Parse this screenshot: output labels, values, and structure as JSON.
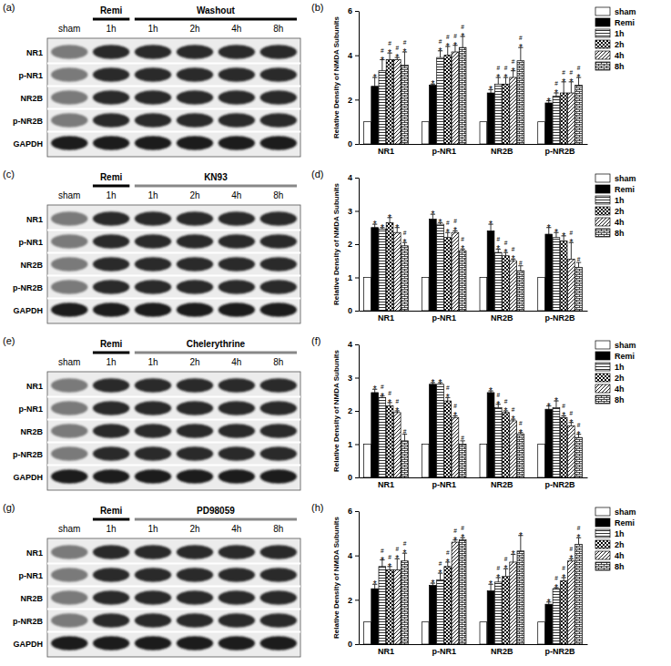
{
  "chart_data": [
    {
      "type": "bar",
      "panel": "(b)",
      "y_label": "Relative Density of NMDA Subunits",
      "categories": [
        "NR1",
        "p-NR1",
        "NR2B",
        "p-NR2B"
      ],
      "ylim": [
        0,
        6
      ],
      "yticks": [
        0,
        2,
        4,
        6
      ],
      "legend": "right",
      "series": [
        {
          "name": "sham",
          "color": "#ffffff",
          "values": [
            1,
            1,
            1,
            1
          ],
          "errors": [
            0,
            0,
            0,
            0
          ],
          "annotations": [
            [],
            [],
            [],
            []
          ]
        },
        {
          "name": "Remi",
          "color": "#000000",
          "values": [
            2.6,
            2.65,
            2.3,
            1.85
          ],
          "errors": [
            0.4,
            0.05,
            0.15,
            0.1
          ],
          "annotations": [
            [
              "*"
            ],
            [
              "*"
            ],
            [
              "*"
            ],
            [
              "*"
            ]
          ]
        },
        {
          "name": "1h",
          "color": "#ffffff",
          "values": [
            3.3,
            3.9,
            2.7,
            2.15
          ],
          "errors": [
            0.5,
            0.3,
            0.3,
            0.15
          ],
          "annotations": [
            [
              "*",
              "#"
            ],
            [
              "*",
              "#"
            ],
            [
              "*",
              "#"
            ],
            [
              "*",
              "#"
            ]
          ]
        },
        {
          "name": "2h",
          "color": "#ffffff",
          "values": [
            3.8,
            4.0,
            2.7,
            2.3
          ],
          "errors": [
            0.3,
            0.4,
            0.3,
            0.5
          ],
          "annotations": [
            [
              "*",
              "#"
            ],
            [
              "*",
              "#"
            ],
            [
              "*",
              "#"
            ],
            [
              "*",
              "#"
            ]
          ]
        },
        {
          "name": "4h",
          "color": "#ffffff",
          "values": [
            3.8,
            4.15,
            3.0,
            2.3
          ],
          "errors": [
            0.1,
            0.3,
            0.3,
            0.5
          ],
          "annotations": [
            [
              "*",
              "#"
            ],
            [
              "*",
              "#"
            ],
            [
              "*",
              "#"
            ],
            [
              "*",
              "#"
            ]
          ]
        },
        {
          "name": "8h",
          "color": "#ffffff",
          "values": [
            3.55,
            4.35,
            3.75,
            2.65
          ],
          "errors": [
            0.6,
            0.5,
            0.6,
            0.35
          ],
          "annotations": [
            [
              "*",
              "#"
            ],
            [
              "*",
              "#"
            ],
            [
              "*",
              "#"
            ],
            [
              "*",
              "#"
            ]
          ]
        }
      ]
    },
    {
      "type": "bar",
      "panel": "(d)",
      "y_label": "Relative Density of NMDA Subunits",
      "categories": [
        "NR1",
        "p-NR1",
        "NR2B",
        "p-NR2B"
      ],
      "ylim": [
        0,
        4
      ],
      "yticks": [
        0,
        1,
        2,
        3,
        4
      ],
      "legend": "right",
      "series": [
        {
          "name": "sham",
          "color": "#ffffff",
          "values": [
            1,
            1,
            1,
            1
          ],
          "errors": [
            0,
            0,
            0,
            0
          ],
          "annotations": [
            [],
            [],
            [],
            []
          ]
        },
        {
          "name": "Remi",
          "color": "#000000",
          "values": [
            2.5,
            2.75,
            2.4,
            2.3
          ],
          "errors": [
            0.1,
            0.15,
            0.2,
            0.2
          ],
          "annotations": [
            [
              "*"
            ],
            [
              "*"
            ],
            [
              "*"
            ],
            [
              "*"
            ]
          ]
        },
        {
          "name": "1h",
          "color": "#ffffff",
          "values": [
            2.45,
            2.6,
            1.75,
            2.2
          ],
          "errors": [
            0.05,
            0.05,
            0.1,
            0.15
          ],
          "annotations": [
            [
              "*"
            ],
            [
              "*"
            ],
            [
              "*",
              "#"
            ],
            [
              "*"
            ]
          ]
        },
        {
          "name": "2h",
          "color": "#ffffff",
          "values": [
            2.65,
            2.2,
            1.65,
            2.1
          ],
          "errors": [
            0.15,
            0.15,
            0.1,
            0.15
          ],
          "annotations": [
            [
              "*"
            ],
            [
              "*",
              "#"
            ],
            [
              "*",
              "#"
            ],
            [
              "*"
            ]
          ]
        },
        {
          "name": "4h",
          "color": "#ffffff",
          "values": [
            2.35,
            2.35,
            1.5,
            1.55
          ],
          "errors": [
            0.15,
            0.05,
            0.05,
            0.5
          ],
          "annotations": [
            [
              "*"
            ],
            [
              "*",
              "#"
            ],
            [
              "*",
              "#"
            ],
            [
              "*",
              "#"
            ]
          ]
        },
        {
          "name": "8h",
          "color": "#ffffff",
          "values": [
            1.95,
            1.8,
            1.2,
            1.3
          ],
          "errors": [
            0.1,
            0.05,
            0.15,
            0.15
          ],
          "annotations": [
            [
              "*",
              "#"
            ],
            [
              "*",
              "#"
            ],
            [
              "#"
            ],
            [
              "#"
            ]
          ]
        }
      ]
    },
    {
      "type": "bar",
      "panel": "(f)",
      "y_label": "Relative Density of NMDA Subunits",
      "categories": [
        "NR1",
        "p-NR1",
        "NR2B",
        "p-NR2B"
      ],
      "ylim": [
        0,
        4
      ],
      "yticks": [
        0,
        1,
        2,
        3,
        4
      ],
      "legend": "right",
      "series": [
        {
          "name": "sham",
          "color": "#ffffff",
          "values": [
            1,
            1,
            1,
            1
          ],
          "errors": [
            0,
            0,
            0,
            0
          ],
          "annotations": [
            [],
            [],
            [],
            []
          ]
        },
        {
          "name": "Remi",
          "color": "#000000",
          "values": [
            2.55,
            2.8,
            2.55,
            2.05
          ],
          "errors": [
            0.1,
            0.05,
            0.05,
            0.1
          ],
          "annotations": [
            [
              "*"
            ],
            [
              "*"
            ],
            [
              "*"
            ],
            [
              "*"
            ]
          ]
        },
        {
          "name": "1h",
          "color": "#ffffff",
          "values": [
            2.4,
            2.8,
            2.1,
            2.1
          ],
          "errors": [
            0.05,
            0.05,
            0.1,
            0.2
          ],
          "annotations": [
            [
              "*",
              "#"
            ],
            [
              "*"
            ],
            [
              "*",
              "#"
            ],
            [
              "*"
            ]
          ]
        },
        {
          "name": "2h",
          "color": "#ffffff",
          "values": [
            2.15,
            2.3,
            1.95,
            1.8
          ],
          "errors": [
            0.1,
            0.1,
            0.05,
            0.05
          ],
          "annotations": [
            [
              "*",
              "#"
            ],
            [
              "*",
              "#"
            ],
            [
              "*",
              "#"
            ],
            [
              "*",
              "#"
            ]
          ]
        },
        {
          "name": "4h",
          "color": "#ffffff",
          "values": [
            1.95,
            1.8,
            1.7,
            1.55
          ],
          "errors": [
            0.05,
            0.05,
            0.05,
            0.1
          ],
          "annotations": [
            [
              "*",
              "#"
            ],
            [
              "*",
              "#"
            ],
            [
              "*",
              "#"
            ],
            [
              "*",
              "#"
            ]
          ]
        },
        {
          "name": "8h",
          "color": "#ffffff",
          "values": [
            1.1,
            1.0,
            1.3,
            1.2
          ],
          "errors": [
            0.2,
            0.1,
            0.05,
            0.1
          ],
          "annotations": [
            [
              "#"
            ],
            [
              "#"
            ],
            [
              "*",
              "#"
            ],
            [
              "*",
              "#"
            ]
          ]
        }
      ]
    },
    {
      "type": "bar",
      "panel": "(h)",
      "y_label": "Relative Density of NMDA Subunits",
      "categories": [
        "NR1",
        "p-NR1",
        "NR2B",
        "p-NR2B"
      ],
      "ylim": [
        0,
        6
      ],
      "yticks": [
        0,
        2,
        4,
        6
      ],
      "legend": "right",
      "series": [
        {
          "name": "sham",
          "color": "#ffffff",
          "values": [
            1,
            1,
            1,
            1
          ],
          "errors": [
            0,
            0,
            0,
            0
          ],
          "annotations": [
            [],
            [],
            [],
            []
          ]
        },
        {
          "name": "Remi",
          "color": "#000000",
          "values": [
            2.5,
            2.65,
            2.4,
            1.8
          ],
          "errors": [
            0.2,
            0.1,
            0.3,
            0.1
          ],
          "annotations": [
            [
              "*"
            ],
            [
              "*"
            ],
            [
              "*"
            ],
            [
              "*"
            ]
          ]
        },
        {
          "name": "1h",
          "color": "#ffffff",
          "values": [
            3.5,
            2.9,
            2.8,
            2.5
          ],
          "errors": [
            0.3,
            0.3,
            0.2,
            0.05
          ],
          "annotations": [
            [
              "*",
              "#"
            ],
            [
              "*",
              "#"
            ],
            [
              "*",
              "#"
            ],
            [
              "*",
              "#"
            ]
          ]
        },
        {
          "name": "2h",
          "color": "#ffffff",
          "values": [
            3.35,
            3.5,
            3.05,
            2.85
          ],
          "errors": [
            0.15,
            0.2,
            0.35,
            0.15
          ],
          "annotations": [
            [
              "*",
              "#"
            ],
            [
              "*",
              "#"
            ],
            [
              "*",
              "#"
            ],
            [
              "*",
              "#"
            ]
          ]
        },
        {
          "name": "4h",
          "color": "#ffffff",
          "values": [
            3.35,
            4.6,
            3.7,
            3.75
          ],
          "errors": [
            0.5,
            0.1,
            0.35,
            0.1
          ],
          "annotations": [
            [
              "*",
              "#"
            ],
            [
              "*",
              "#"
            ],
            [
              "*"
            ],
            [
              "*",
              "#"
            ]
          ]
        },
        {
          "name": "8h",
          "color": "#ffffff",
          "values": [
            3.75,
            4.7,
            4.2,
            4.5
          ],
          "errors": [
            0.35,
            0.1,
            0.7,
            0.3
          ],
          "annotations": [
            [
              "*",
              "#"
            ],
            [
              "*",
              "#"
            ],
            [
              "*"
            ],
            [
              "*",
              "#"
            ]
          ]
        }
      ]
    }
  ],
  "blots": [
    {
      "panel": "(a)",
      "lanes": [
        "sham",
        "1h",
        "1h",
        "2h",
        "4h",
        "8h"
      ],
      "groups": [
        {
          "label": "Remi",
          "lanes": [
            1
          ]
        },
        {
          "label": "Washout",
          "lanes": [
            2,
            3,
            4,
            5
          ]
        }
      ],
      "rows": [
        "NR1",
        "p-NR1",
        "NR2B",
        "p-NR2B",
        "GAPDH"
      ]
    },
    {
      "panel": "(c)",
      "lanes": [
        "sham",
        "1h",
        "1h",
        "2h",
        "4h",
        "8h"
      ],
      "groups": [
        {
          "label": "Remi",
          "lanes": [
            1
          ]
        },
        {
          "label": "KN93",
          "lanes": [
            2,
            3,
            4,
            5
          ]
        }
      ],
      "rows": [
        "NR1",
        "p-NR1",
        "NR2B",
        "p-NR2B",
        "GAPDH"
      ]
    },
    {
      "panel": "(e)",
      "lanes": [
        "sham",
        "1h",
        "1h",
        "2h",
        "4h",
        "8h"
      ],
      "groups": [
        {
          "label": "Remi",
          "lanes": [
            1
          ]
        },
        {
          "label": "Chelerythrine",
          "lanes": [
            2,
            3,
            4,
            5
          ]
        }
      ],
      "rows": [
        "NR1",
        "p-NR1",
        "NR2B",
        "p-NR2B",
        "GAPDH"
      ]
    },
    {
      "panel": "(g)",
      "lanes": [
        "sham",
        "1h",
        "1h",
        "2h",
        "4h",
        "8h"
      ],
      "groups": [
        {
          "label": "Remi",
          "lanes": [
            1
          ]
        },
        {
          "label": "PD98059",
          "lanes": [
            2,
            3,
            4,
            5
          ]
        }
      ],
      "rows": [
        "NR1",
        "p-NR1",
        "NR2B",
        "p-NR2B",
        "GAPDH"
      ]
    }
  ]
}
